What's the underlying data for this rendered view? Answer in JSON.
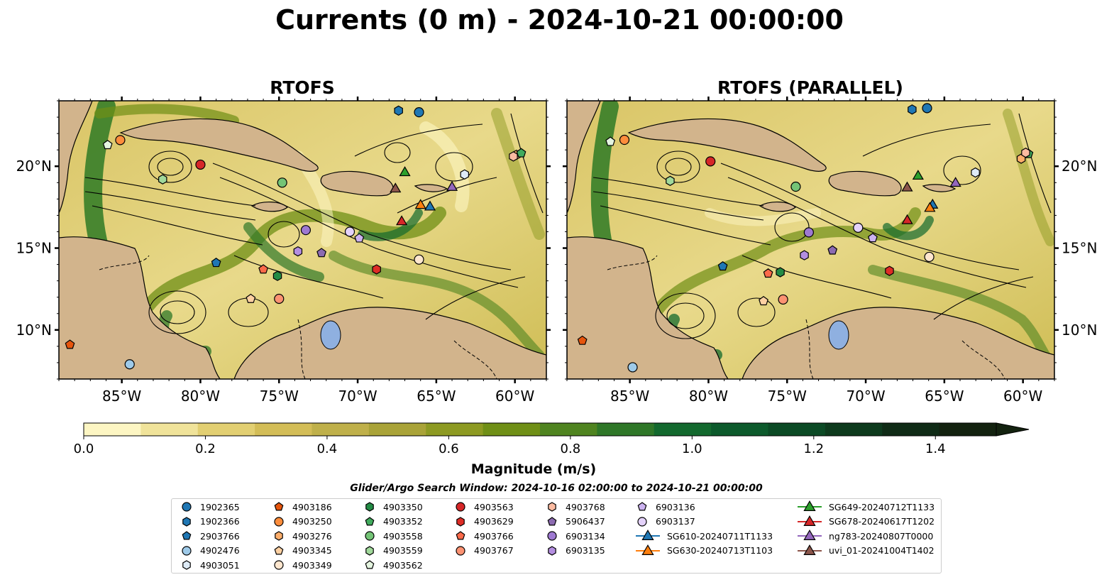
{
  "title": "Currents (0 m) - 2024-10-21 00:00:00",
  "panels": [
    {
      "title": "RTOFS"
    },
    {
      "title": "RTOFS (PARALLEL)"
    }
  ],
  "lon_ticks": [
    "85°W",
    "80°W",
    "75°W",
    "70°W",
    "65°W",
    "60°W"
  ],
  "lat_ticks": [
    "20°N",
    "15°N",
    "10°N"
  ],
  "map_extent": {
    "lon": [
      -89,
      -58
    ],
    "lat": [
      7,
      24
    ]
  },
  "colorbar": {
    "label": "Magnitude (m/s)",
    "ticks": [
      "0.0",
      "0.2",
      "0.4",
      "0.6",
      "0.8",
      "1.0",
      "1.2",
      "1.4"
    ],
    "range": [
      0,
      1.5
    ],
    "colors": [
      "#fdf6c3",
      "#f0e39a",
      "#e2cf72",
      "#d3bd57",
      "#bfb04a",
      "#a9a338",
      "#8d9a22",
      "#6f8f16",
      "#4f8420",
      "#2f7728",
      "#13692e",
      "#0c5a2c",
      "#0b4a25",
      "#0d3a1d",
      "#0f2b16",
      "#13220f"
    ]
  },
  "search_window": "Glider/Argo Search Window: 2024-10-16 02:00:00 to 2024-10-21 00:00:00",
  "colors": {
    "land": "#d2b48c",
    "lake": "#8fb0e0",
    "river": "#a8b6d0"
  },
  "legend": [
    {
      "label": "1902365",
      "shape": "circle",
      "color": "#1f77b4"
    },
    {
      "label": "1902366",
      "shape": "hexagon",
      "color": "#1f77b4"
    },
    {
      "label": "2903766",
      "shape": "pentagon",
      "color": "#1f77b4"
    },
    {
      "label": "4902476",
      "shape": "circle",
      "color": "#9ecae9"
    },
    {
      "label": "4903051",
      "shape": "hexagon",
      "color": "#deebf7"
    },
    {
      "label": "4903186",
      "shape": "pentagon",
      "color": "#e6550d"
    },
    {
      "label": "4903250",
      "shape": "circle",
      "color": "#fd8d3c"
    },
    {
      "label": "4903276",
      "shape": "hexagon",
      "color": "#fdae6b"
    },
    {
      "label": "4903345",
      "shape": "pentagon",
      "color": "#fdd0a2"
    },
    {
      "label": "4903349",
      "shape": "circle",
      "color": "#fee6ce"
    },
    {
      "label": "4903350",
      "shape": "hexagon",
      "color": "#238b45"
    },
    {
      "label": "4903352",
      "shape": "pentagon",
      "color": "#41ab5d"
    },
    {
      "label": "4903558",
      "shape": "circle",
      "color": "#74c476"
    },
    {
      "label": "4903559",
      "shape": "hexagon",
      "color": "#a1d99b"
    },
    {
      "label": "4903562",
      "shape": "pentagon",
      "color": "#e5f5e0"
    },
    {
      "label": "4903563",
      "shape": "circle",
      "color": "#d62728"
    },
    {
      "label": "4903629",
      "shape": "hexagon",
      "color": "#de2d26"
    },
    {
      "label": "4903766",
      "shape": "pentagon",
      "color": "#fb6a4a"
    },
    {
      "label": "4903767",
      "shape": "circle",
      "color": "#fc9272"
    },
    {
      "label": "4903768",
      "shape": "hexagon",
      "color": "#fcbba1"
    },
    {
      "label": "5906437",
      "shape": "pentagon",
      "color": "#8c6bb1"
    },
    {
      "label": "6903134",
      "shape": "circle",
      "color": "#9e79d1"
    },
    {
      "label": "6903135",
      "shape": "hexagon",
      "color": "#b48ee0"
    },
    {
      "label": "6903136",
      "shape": "pentagon",
      "color": "#ccb3f0"
    },
    {
      "label": "6903137",
      "shape": "circle",
      "color": "#e4d2fa"
    },
    {
      "label": "SG610-20240711T1133",
      "shape": "triangle",
      "color": "#1f77b4"
    },
    {
      "label": "SG630-20240713T1103",
      "shape": "triangle",
      "color": "#ff7f0e"
    },
    {
      "label": "SG649-20240712T1133",
      "shape": "triangle",
      "color": "#2ca02c"
    },
    {
      "label": "SG678-20240617T1202",
      "shape": "triangle",
      "color": "#d62728"
    },
    {
      "label": "ng783-20240807T0000",
      "shape": "triangle",
      "color": "#9467bd"
    },
    {
      "label": "uvi_01-20241004T1402",
      "shape": "triangle",
      "color": "#8c564b"
    }
  ],
  "platforms_panel1": [
    {
      "id": "1902365",
      "lon": -66.1,
      "lat": 23.3
    },
    {
      "id": "1902366",
      "lon": -67.4,
      "lat": 23.4
    },
    {
      "id": "2903766",
      "lon": -79.0,
      "lat": 14.1
    },
    {
      "id": "4902476",
      "lon": -84.5,
      "lat": 7.9
    },
    {
      "id": "4903051",
      "lon": -63.2,
      "lat": 19.5
    },
    {
      "id": "4903186",
      "lon": -88.3,
      "lat": 9.1
    },
    {
      "id": "4903250",
      "lon": -85.1,
      "lat": 21.6
    },
    {
      "id": "4903276",
      "lon": -59.9,
      "lat": 20.7
    },
    {
      "id": "4903345",
      "lon": -76.8,
      "lat": 11.9
    },
    {
      "id": "4903349",
      "lon": -66.1,
      "lat": 14.3
    },
    {
      "id": "4903350",
      "lon": -75.1,
      "lat": 13.3
    },
    {
      "id": "4903352",
      "lon": -59.6,
      "lat": 20.8
    },
    {
      "id": "4903558",
      "lon": -74.8,
      "lat": 19.0
    },
    {
      "id": "4903559",
      "lon": -82.4,
      "lat": 19.2
    },
    {
      "id": "4903562",
      "lon": -85.9,
      "lat": 21.3
    },
    {
      "id": "4903563",
      "lon": -80.0,
      "lat": 20.1
    },
    {
      "id": "4903629",
      "lon": -68.8,
      "lat": 13.7
    },
    {
      "id": "4903766",
      "lon": -76.0,
      "lat": 13.7
    },
    {
      "id": "4903767",
      "lon": -75.0,
      "lat": 11.9
    },
    {
      "id": "4903768",
      "lon": -60.1,
      "lat": 20.6
    },
    {
      "id": "5906437",
      "lon": -72.3,
      "lat": 14.7
    },
    {
      "id": "6903134",
      "lon": -73.3,
      "lat": 16.1
    },
    {
      "id": "6903135",
      "lon": -73.8,
      "lat": 14.8
    },
    {
      "id": "6903136",
      "lon": -69.9,
      "lat": 15.6
    },
    {
      "id": "6903137",
      "lon": -70.5,
      "lat": 16.0
    },
    {
      "id": "SG610-20240711T1133",
      "lon": -65.4,
      "lat": 17.5
    },
    {
      "id": "SG630-20240713T1103",
      "lon": -66.0,
      "lat": 17.6
    },
    {
      "id": "SG649-20240712T1133",
      "lon": -67.0,
      "lat": 19.6
    },
    {
      "id": "SG678-20240617T1202",
      "lon": -67.2,
      "lat": 16.6
    },
    {
      "id": "ng783-20240807T0000",
      "lon": -64.0,
      "lat": 18.7
    },
    {
      "id": "uvi_01-20241004T1402",
      "lon": -67.6,
      "lat": 18.6
    }
  ]
}
